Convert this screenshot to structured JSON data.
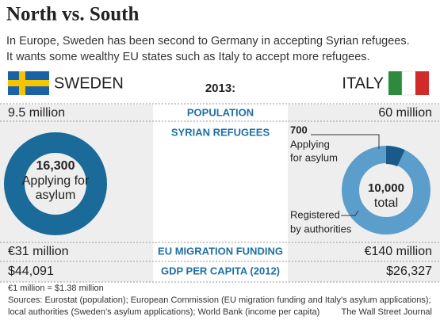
{
  "header": {
    "title": "North vs. South",
    "subtitle": [
      "In Europe, Sweden has been second to Germany in accepting Syrian refugees.",
      "It wants some wealthy EU states such as Italy to accept more refugees."
    ]
  },
  "countries": {
    "left": "SWEDEN",
    "right": "ITALY",
    "year": "2013:"
  },
  "rows": [
    {
      "label": "POPULATION",
      "left": "9.5 million",
      "right": "60 million"
    },
    {
      "label": "EU MIGRATION FUNDING",
      "left": "€31 million",
      "right": "€140 million"
    },
    {
      "label": "GDP PER CAPITA (2012)",
      "left": "$44,091",
      "right": "$26,327"
    }
  ],
  "refugees": {
    "label": "SYRIAN REFUGEES",
    "sweden": {
      "number": "16,300",
      "text": [
        "Applying for",
        "asylum"
      ]
    },
    "italy": {
      "applying_number": "700",
      "applying_text": [
        "Applying",
        "for asylum"
      ],
      "total_number": "10,000",
      "total_text": "total",
      "registered_text": [
        "Registered",
        "by authorities"
      ]
    }
  },
  "footer": {
    "note": "€1 million = $1.38 million",
    "sources": [
      "Sources: Eurostat (population); European Commission (EU migration funding and Italy’s asylum applications);",
      "local authorities (Sweden’s asylum applications); World Bank (income per capita)"
    ],
    "credit": "The Wall Street Journal"
  }
}
